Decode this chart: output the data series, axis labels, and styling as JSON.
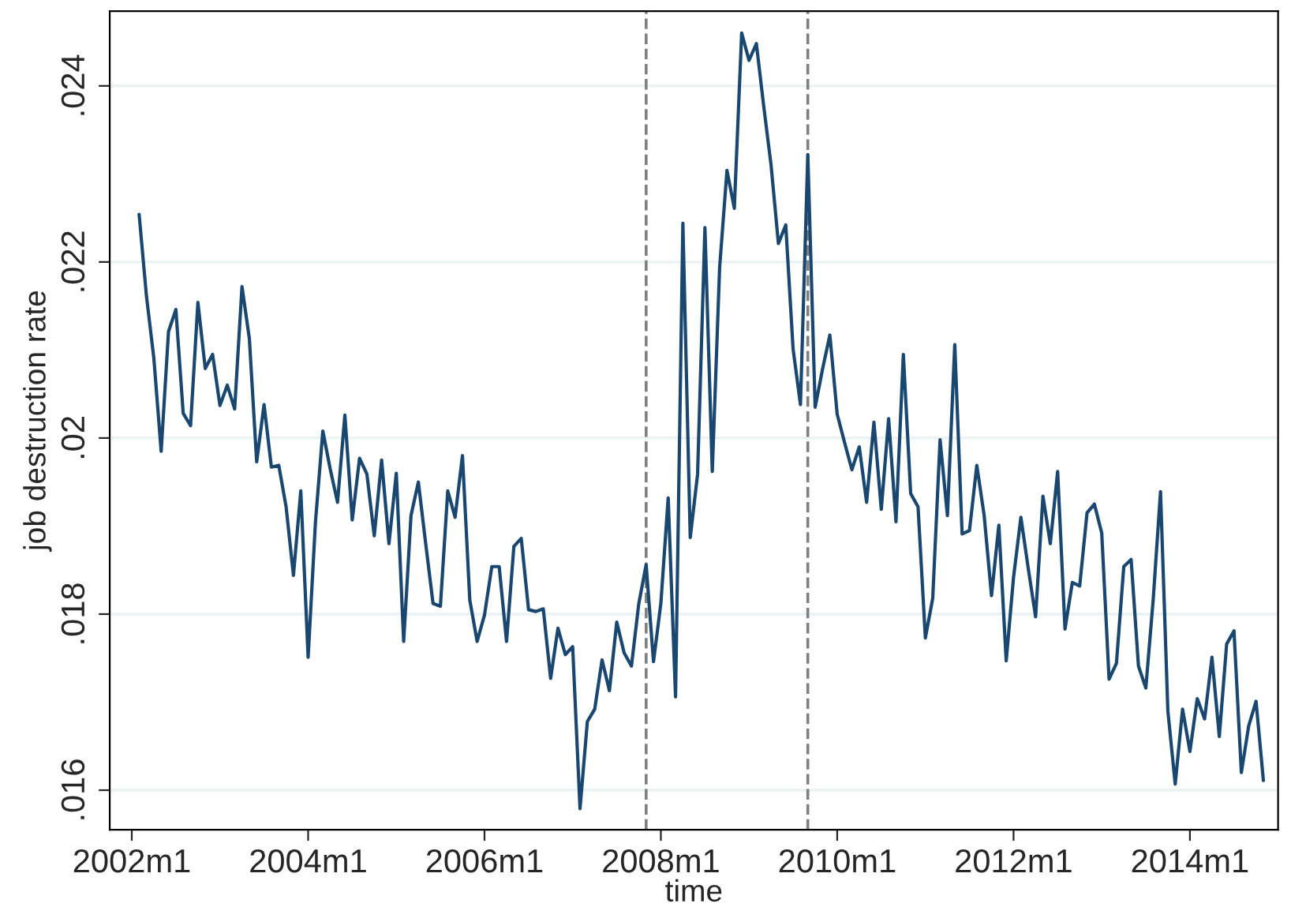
{
  "chart_data": {
    "type": "line",
    "xlabel": "time",
    "ylabel": "job destruction rate",
    "x": [
      "2002-02",
      "2002-03",
      "2002-04",
      "2002-05",
      "2002-06",
      "2002-07",
      "2002-08",
      "2002-09",
      "2002-10",
      "2002-11",
      "2002-12",
      "2003-01",
      "2003-02",
      "2003-03",
      "2003-04",
      "2003-05",
      "2003-06",
      "2003-07",
      "2003-08",
      "2003-09",
      "2003-10",
      "2003-11",
      "2003-12",
      "2004-01",
      "2004-02",
      "2004-03",
      "2004-04",
      "2004-05",
      "2004-06",
      "2004-07",
      "2004-08",
      "2004-09",
      "2004-10",
      "2004-11",
      "2004-12",
      "2005-01",
      "2005-02",
      "2005-03",
      "2005-04",
      "2005-05",
      "2005-06",
      "2005-07",
      "2005-08",
      "2005-09",
      "2005-10",
      "2005-11",
      "2005-12",
      "2006-01",
      "2006-02",
      "2006-03",
      "2006-04",
      "2006-05",
      "2006-06",
      "2006-07",
      "2006-08",
      "2006-09",
      "2006-10",
      "2006-11",
      "2006-12",
      "2007-01",
      "2007-02",
      "2007-03",
      "2007-04",
      "2007-05",
      "2007-06",
      "2007-07",
      "2007-08",
      "2007-09",
      "2007-10",
      "2007-11",
      "2007-12",
      "2008-01",
      "2008-02",
      "2008-03",
      "2008-04",
      "2008-05",
      "2008-06",
      "2008-07",
      "2008-08",
      "2008-09",
      "2008-10",
      "2008-11",
      "2008-12",
      "2009-01",
      "2009-02",
      "2009-03",
      "2009-04",
      "2009-05",
      "2009-06",
      "2009-07",
      "2009-08",
      "2009-09",
      "2009-10",
      "2009-11",
      "2009-12",
      "2010-01",
      "2010-02",
      "2010-03",
      "2010-04",
      "2010-05",
      "2010-06",
      "2010-07",
      "2010-08",
      "2010-09",
      "2010-10",
      "2010-11",
      "2010-12",
      "2011-01",
      "2011-02",
      "2011-03",
      "2011-04",
      "2011-05",
      "2011-06",
      "2011-07",
      "2011-08",
      "2011-09",
      "2011-10",
      "2011-11",
      "2011-12",
      "2012-01",
      "2012-02",
      "2012-03",
      "2012-04",
      "2012-05",
      "2012-06",
      "2012-07",
      "2012-08",
      "2012-09",
      "2012-10",
      "2012-11",
      "2012-12",
      "2013-01",
      "2013-02",
      "2013-03",
      "2013-04",
      "2013-05",
      "2013-06",
      "2013-07",
      "2013-08",
      "2013-09",
      "2013-10",
      "2013-11",
      "2013-12",
      "2014-01",
      "2014-02",
      "2014-03",
      "2014-04",
      "2014-05",
      "2014-06",
      "2014-07",
      "2014-08",
      "2014-09",
      "2014-10",
      "2014-11"
    ],
    "series": [
      {
        "color": "#1a476f",
        "values": [
          0.02254,
          0.02161,
          0.02091,
          0.01985,
          0.02121,
          0.02146,
          0.02028,
          0.02014,
          0.02154,
          0.02079,
          0.02095,
          0.02037,
          0.0206,
          0.02033,
          0.02172,
          0.02113,
          0.01973,
          0.02038,
          0.01967,
          0.01969,
          0.01922,
          0.01844,
          0.0194,
          0.01751,
          0.01905,
          0.02008,
          0.01965,
          0.01927,
          0.02026,
          0.01907,
          0.01977,
          0.01959,
          0.01889,
          0.01975,
          0.0188,
          0.0196,
          0.01769,
          0.01912,
          0.0195,
          0.0188,
          0.01812,
          0.01809,
          0.0194,
          0.0191,
          0.0198,
          0.01816,
          0.01769,
          0.01799,
          0.01854,
          0.01854,
          0.01769,
          0.01877,
          0.01886,
          0.01805,
          0.01803,
          0.01806,
          0.01727,
          0.01784,
          0.01754,
          0.01763,
          0.01579,
          0.01678,
          0.01692,
          0.01748,
          0.01713,
          0.01791,
          0.01756,
          0.01741,
          0.01812,
          0.01856,
          0.01746,
          0.01812,
          0.01932,
          0.01706,
          0.02244,
          0.01887,
          0.01959,
          0.02239,
          0.01962,
          0.02194,
          0.02304,
          0.02261,
          0.0246,
          0.02429,
          0.02448,
          0.02377,
          0.0231,
          0.02221,
          0.02242,
          0.02101,
          0.02038,
          0.02322,
          0.02035,
          0.02078,
          0.02117,
          0.02027,
          0.01995,
          0.01964,
          0.0199,
          0.01927,
          0.02018,
          0.01919,
          0.02022,
          0.01905,
          0.02095,
          0.01937,
          0.01922,
          0.01773,
          0.01818,
          0.01998,
          0.01912,
          0.02106,
          0.01891,
          0.01895,
          0.01969,
          0.01912,
          0.01821,
          0.01901,
          0.01747,
          0.01842,
          0.0191,
          0.01852,
          0.01797,
          0.01934,
          0.0188,
          0.01962,
          0.01783,
          0.01836,
          0.01832,
          0.01915,
          0.01925,
          0.01892,
          0.01726,
          0.01744,
          0.01854,
          0.01862,
          0.01741,
          0.01716,
          0.01816,
          0.01939,
          0.0169,
          0.01607,
          0.01692,
          0.01644,
          0.01704,
          0.01681,
          0.01751,
          0.01661,
          0.01766,
          0.01781,
          0.0162,
          0.01673,
          0.01701,
          0.01611
        ]
      }
    ],
    "xlim": [
      "2001-10",
      "2015-01"
    ],
    "xticks": [
      {
        "value": "2002-01",
        "label": "2002m1"
      },
      {
        "value": "2004-01",
        "label": "2004m1"
      },
      {
        "value": "2006-01",
        "label": "2006m1"
      },
      {
        "value": "2008-01",
        "label": "2008m1"
      },
      {
        "value": "2010-01",
        "label": "2010m1"
      },
      {
        "value": "2012-01",
        "label": "2012m1"
      },
      {
        "value": "2014-01",
        "label": "2014m1"
      }
    ],
    "ylim": [
      0.01555,
      0.02485
    ],
    "yticks": [
      {
        "value": 0.016,
        "label": ".016"
      },
      {
        "value": 0.018,
        "label": ".018"
      },
      {
        "value": 0.02,
        "label": ".02"
      },
      {
        "value": 0.022,
        "label": ".022"
      },
      {
        "value": 0.024,
        "label": ".024"
      }
    ],
    "grid": "y",
    "line_style": "solid",
    "ref_lines": [
      {
        "axis": "x",
        "value": "2007-11",
        "color": "#808080",
        "line_style": "dashed"
      },
      {
        "axis": "x",
        "value": "2009-09",
        "color": "#808080",
        "line_style": "dashed"
      }
    ]
  }
}
